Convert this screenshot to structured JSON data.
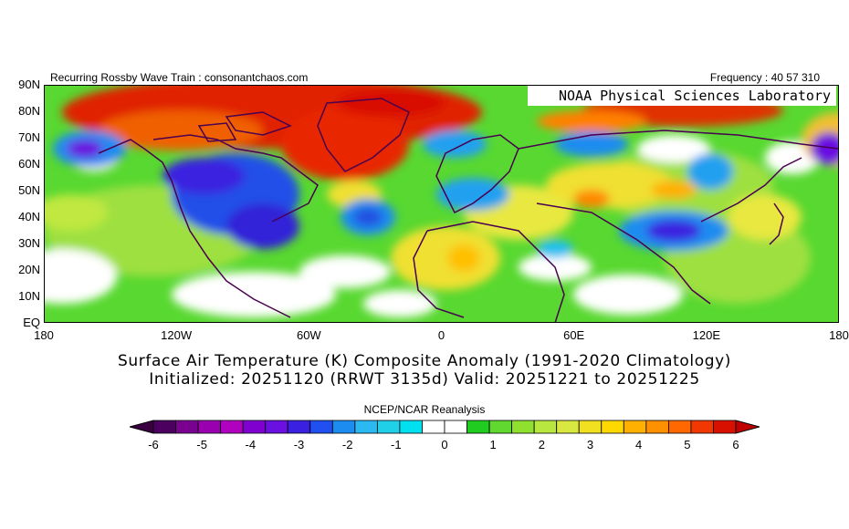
{
  "header": {
    "left_text": "Recurring Rossby Wave Train : consonantchaos.com",
    "right_text": "Frequency : 40 57 310",
    "lab_label": "NOAA Physical Sciences Laboratory"
  },
  "map": {
    "y_ticks": [
      "90N",
      "80N",
      "70N",
      "60N",
      "50N",
      "40N",
      "30N",
      "20N",
      "10N",
      "EQ"
    ],
    "x_ticks": [
      "180",
      "120W",
      "60W",
      "0",
      "60E",
      "120E",
      "180"
    ],
    "lat_range": [
      0,
      90
    ],
    "lon_range": [
      -180,
      180
    ]
  },
  "caption": {
    "line1": "Surface Air Temperature (K) Composite Anomaly (1991-2020 Climatology)",
    "line2": "Initialized: 20251120 (RRWT 3135d) Valid: 20251221 to 20251225"
  },
  "colorbar": {
    "title": "NCEP/NCAR Reanalysis",
    "labels": [
      "-6",
      "-5",
      "-4",
      "-3",
      "-2",
      "-1",
      "0",
      "1",
      "2",
      "3",
      "4",
      "5",
      "6"
    ],
    "colors": [
      "#4b0060",
      "#7a0090",
      "#9a00b0",
      "#b000c0",
      "#8000d0",
      "#6a10e0",
      "#3a20e0",
      "#2050f0",
      "#1c8cf0",
      "#2cb8f0",
      "#20d0e8",
      "#00e0f0",
      "#ffffff",
      "#ffffff",
      "#20cc20",
      "#60d830",
      "#90e030",
      "#b8e840",
      "#d8e840",
      "#f0e020",
      "#ffd800",
      "#ffb000",
      "#ff9000",
      "#ff6800",
      "#f03800",
      "#d81000"
    ]
  }
}
